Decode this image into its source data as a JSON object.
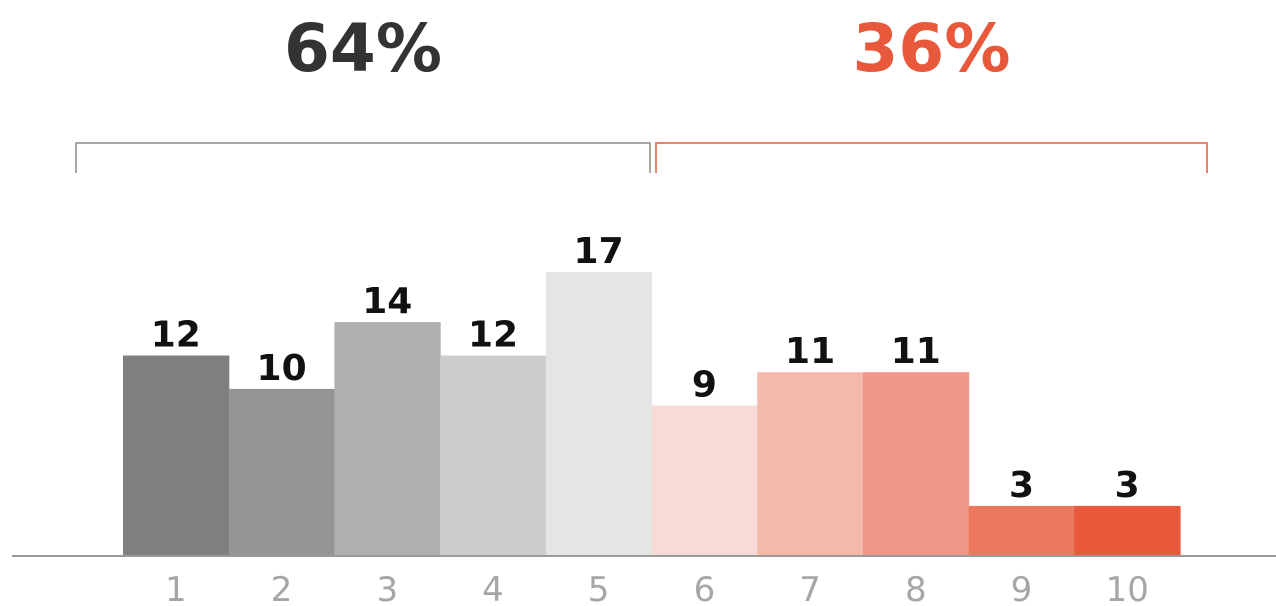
{
  "chart_data": {
    "type": "bar",
    "categories": [
      "1",
      "2",
      "3",
      "4",
      "5",
      "6",
      "7",
      "8",
      "9",
      "10"
    ],
    "values": [
      12,
      10,
      14,
      12,
      17,
      9,
      11,
      11,
      3,
      3
    ],
    "bar_colors": [
      "#7f7f7f",
      "#959595",
      "#b0b0b0",
      "#cccccc",
      "#e5e5e5",
      "#f8dbd6",
      "#f4b9ab",
      "#ef9887",
      "#ec7860",
      "#e8583a"
    ],
    "ylim": [
      0,
      17
    ],
    "grid": false,
    "title": "",
    "xlabel": "",
    "ylabel": "",
    "groups": [
      {
        "label": "64%",
        "first_category": "1",
        "last_category": "5",
        "color": "#333333"
      },
      {
        "label": "36%",
        "first_category": "6",
        "last_category": "10",
        "color": "#e8583a"
      }
    ]
  }
}
